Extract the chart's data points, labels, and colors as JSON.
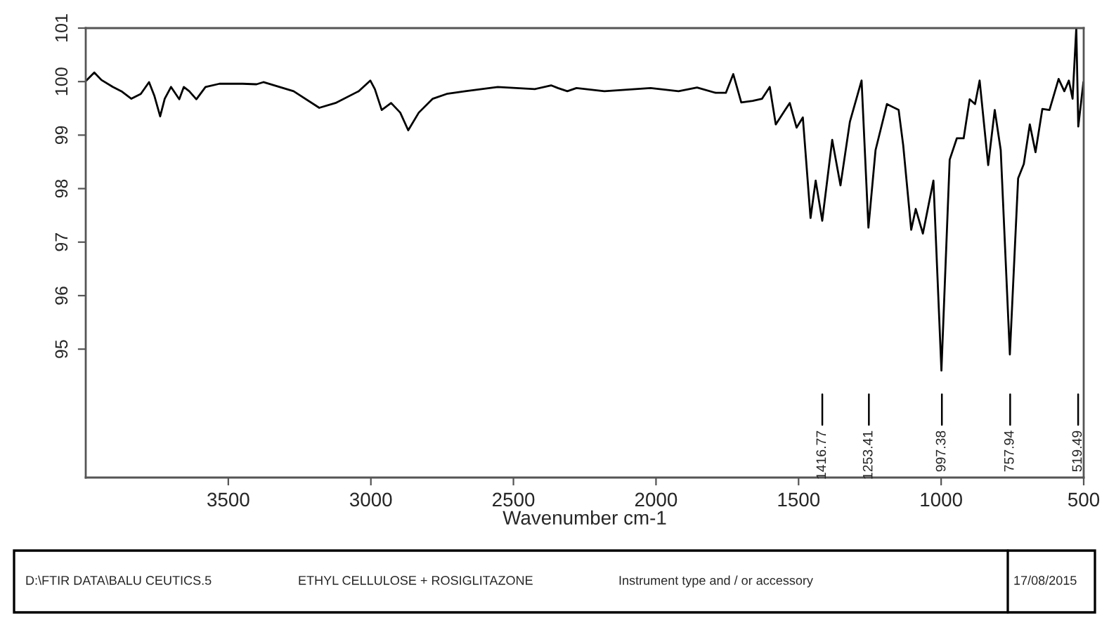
{
  "chart_data": {
    "type": "line",
    "xlabel": "Wavenumber cm-1",
    "x": [
      3998,
      3970,
      3945,
      3905,
      3875,
      3840,
      3807,
      3778,
      3759,
      3739,
      3723,
      3701,
      3672,
      3656,
      3637,
      3612,
      3580,
      3531,
      3450,
      3401,
      3377,
      3271,
      3181,
      3124,
      3043,
      3002,
      2986,
      2962,
      2929,
      2897,
      2869,
      2832,
      2783,
      2734,
      2669,
      2555,
      2425,
      2368,
      2344,
      2311,
      2279,
      2181,
      2019,
      1921,
      1856,
      1791,
      1755,
      1729,
      1701,
      1661,
      1628,
      1601,
      1580,
      1547,
      1531,
      1507,
      1485,
      1458,
      1440,
      1417,
      1382,
      1353,
      1320,
      1279,
      1255,
      1230,
      1190,
      1149,
      1133,
      1105,
      1089,
      1064,
      1027,
      999,
      970,
      945,
      921,
      900,
      881,
      865,
      835,
      812,
      791,
      759,
      730,
      710,
      689,
      669,
      645,
      620,
      588,
      568,
      552,
      539,
      526,
      519,
      501
    ],
    "series": [
      {
        "color": "#000000",
        "values": [
          100.02,
          100.17,
          100.03,
          99.9,
          99.82,
          99.68,
          99.77,
          99.99,
          99.73,
          99.35,
          99.68,
          99.9,
          99.67,
          99.9,
          99.82,
          99.67,
          99.9,
          99.96,
          99.96,
          99.95,
          99.99,
          99.82,
          99.51,
          99.6,
          99.82,
          100.02,
          99.86,
          99.47,
          99.6,
          99.42,
          99.09,
          99.42,
          99.68,
          99.77,
          99.82,
          99.9,
          99.86,
          99.93,
          99.88,
          99.82,
          99.88,
          99.82,
          99.88,
          99.82,
          99.89,
          99.79,
          99.79,
          100.14,
          99.61,
          99.64,
          99.68,
          99.9,
          99.2,
          99.47,
          99.6,
          99.14,
          99.33,
          97.45,
          98.15,
          97.4,
          98.91,
          98.06,
          99.25,
          100.02,
          97.27,
          98.72,
          99.58,
          99.47,
          98.81,
          97.23,
          97.62,
          97.16,
          98.15,
          94.6,
          98.54,
          98.94,
          98.94,
          99.67,
          99.58,
          100.02,
          98.44,
          99.47,
          98.72,
          94.9,
          98.19,
          98.46,
          99.2,
          98.68,
          99.49,
          99.47,
          100.05,
          99.82,
          100.02,
          99.68,
          101.0,
          99.16,
          99.99
        ]
      }
    ],
    "xlim": [
      4000,
      500
    ],
    "xticks": [
      3500,
      3000,
      2500,
      2000,
      1500,
      1000,
      500
    ],
    "ylim": [
      92.6,
      101
    ],
    "yticks": [
      95,
      96,
      97,
      98,
      99,
      100,
      101
    ],
    "grid": false,
    "legend": false,
    "line_style": "solid",
    "marker": "none",
    "annotations": [
      {
        "text": "1416.77",
        "x": 1416.77
      },
      {
        "text": "1253.41",
        "x": 1253.41
      },
      {
        "text": "997.38",
        "x": 997.38
      },
      {
        "text": "757.94",
        "x": 757.94
      },
      {
        "text": "519.49",
        "x": 519.49
      },
      "D:\\FTIR DATA\\BALU CEUTICS.5",
      "ETHYL CELLULOSE + ROSIGLITAZONE",
      "Instrument type and / or accessory",
      "17/08/2015"
    ]
  }
}
